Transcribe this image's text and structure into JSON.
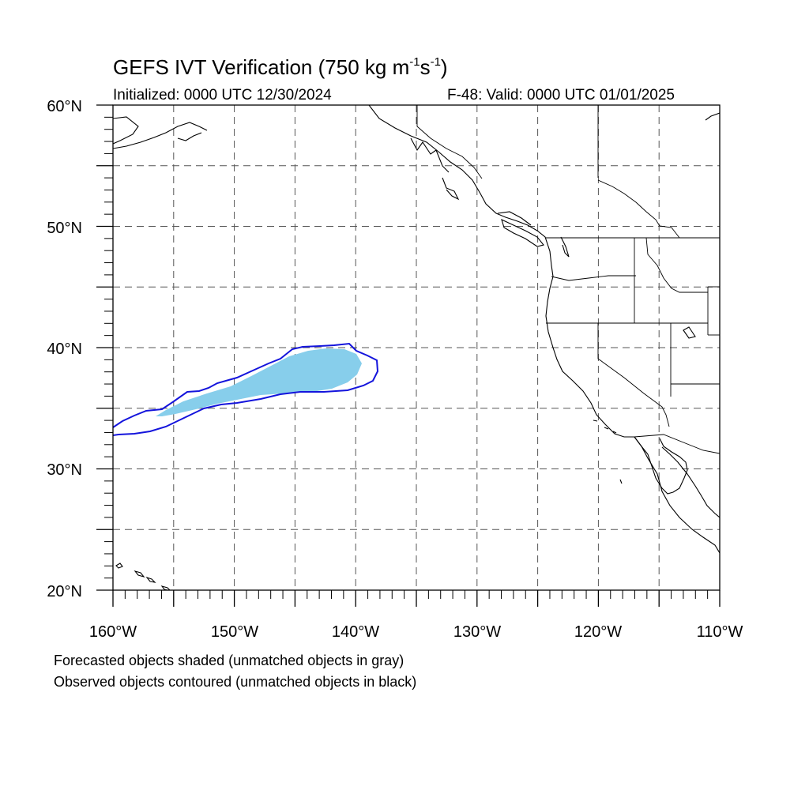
{
  "title": {
    "prefix": "GEFS IVT Verification (750 kg m",
    "exp1": "-1",
    "mid": "s",
    "exp2": "-1",
    "suffix": ")"
  },
  "initialized": "Initialized: 0000 UTC 12/30/2024",
  "valid": "F-48: Valid: 0000 UTC 01/01/2025",
  "map": {
    "lon_range": [
      -160,
      -110
    ],
    "lat_range": [
      20,
      60
    ],
    "lat_labels": [
      "20°N",
      "30°N",
      "40°N",
      "50°N",
      "60°N"
    ],
    "lon_labels": [
      "160°W",
      "150°W",
      "140°W",
      "130°W",
      "120°W",
      "110°W"
    ],
    "gridline_style": "dashed",
    "forecast_fill_color": "#87ceeb",
    "observed_contour_color": "#1414dc"
  },
  "legend": {
    "line1": "Forecasted objects shaded (unmatched objects in gray)",
    "line2": "Observed objects contoured (unmatched objects in black)"
  }
}
